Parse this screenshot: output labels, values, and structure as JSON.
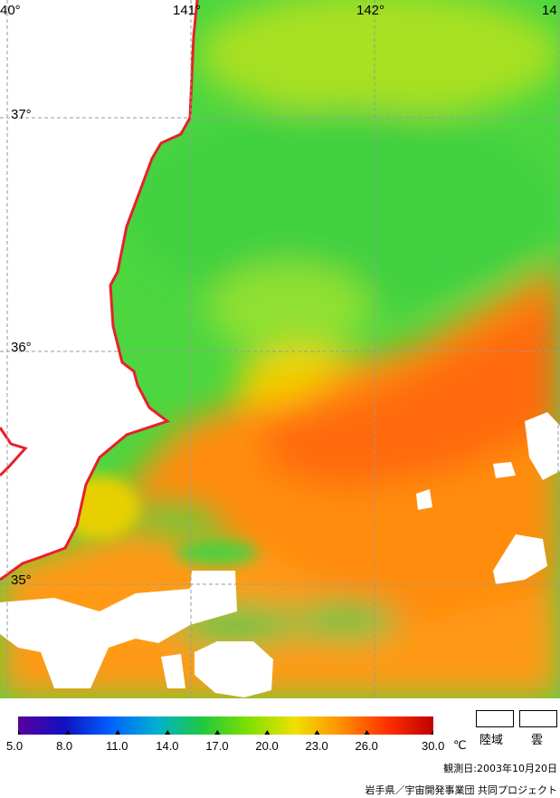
{
  "map": {
    "lat_labels": [
      "37°",
      "36°",
      "35°"
    ],
    "lon_labels": [
      "40°",
      "141°",
      "142°",
      "14"
    ],
    "colors": {
      "land": "#ffffff",
      "coast": "#e8202a",
      "grid": "#a0a0a0",
      "cloud": "#ffffff"
    }
  },
  "legend": {
    "ticks": [
      "5.0",
      "8.0",
      "11.0",
      "14.0",
      "17.0",
      "20.0",
      "23.0",
      "26.0",
      "30.0"
    ],
    "unit": "℃",
    "land_label": "陸域",
    "cloud_label": "雲",
    "colors": [
      "#5a00a0",
      "#1010c0",
      "#0060ff",
      "#00b0d0",
      "#20c840",
      "#80e000",
      "#f0e000",
      "#ff9000",
      "#ff3000",
      "#c00000"
    ]
  },
  "footer": {
    "observation_date": "観測日:2003年10月20日",
    "credit": "岩手県／宇宙開発事業団 共同プロジェクト"
  }
}
